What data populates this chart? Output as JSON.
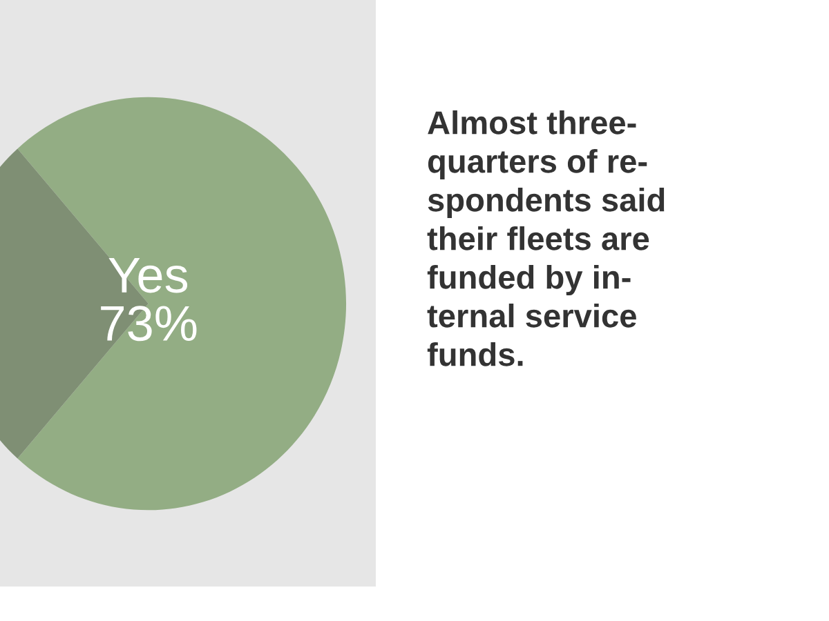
{
  "chart_data": {
    "type": "pie",
    "categories": [
      "Yes",
      null
    ],
    "values": [
      73,
      27
    ],
    "colors": [
      "#93ad84",
      "#7f8f74"
    ],
    "value_labels": [
      "73%",
      null
    ],
    "annotations": [
      "Almost three-\nquarters of re-\nspondents said\ntheir fleets are\nfunded by in-\nternal service\nfunds."
    ]
  }
}
